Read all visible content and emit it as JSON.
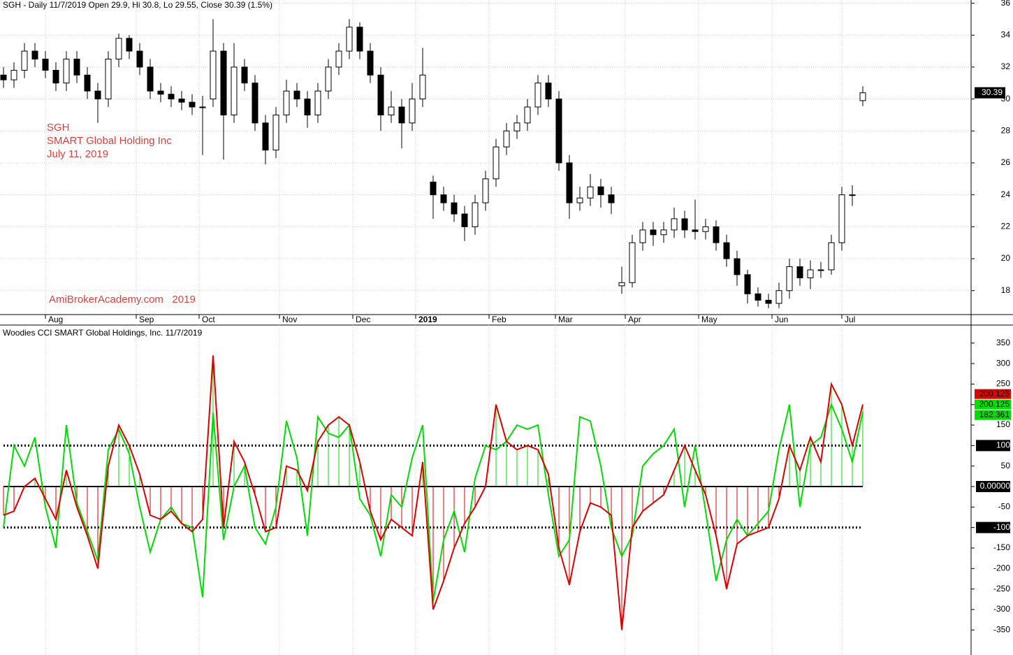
{
  "chart_data": [
    {
      "type": "candlestick",
      "title": "SGH - Daily 11/7/2019 Open 29.9, Hi 30.8, Lo 29.55, Close 30.39 (1.5%)",
      "annotations": [
        "SGH",
        "SMART Global Holding Inc",
        "July 11, 2019",
        "AmiBrokerAcademy.com   2019"
      ],
      "x": [
        0,
        3,
        6,
        9,
        12,
        15,
        18,
        21,
        24,
        27,
        30,
        33,
        36,
        39,
        42,
        45,
        48,
        51,
        54,
        57,
        60,
        63,
        66,
        69,
        72,
        75,
        78,
        81,
        84,
        87,
        90,
        93,
        96,
        99,
        102,
        105,
        108,
        111,
        114,
        117,
        120,
        123,
        126,
        129,
        132,
        135,
        138,
        141,
        144,
        147,
        150,
        153,
        156,
        159,
        162,
        165,
        168,
        171,
        174,
        177,
        180,
        183,
        186,
        189,
        192,
        195,
        198,
        201,
        204,
        207,
        210,
        213,
        216,
        219,
        222,
        225,
        228,
        231,
        234,
        237,
        240,
        243,
        246
      ],
      "open": [
        31.5,
        31.2,
        31.8,
        33.0,
        32.5,
        31.8,
        31.0,
        32.5,
        31.5,
        30.5,
        30.0,
        32.5,
        33.8,
        33.0,
        32.0,
        30.5,
        30.3,
        30.0,
        29.8,
        29.5,
        30.0,
        33.0,
        29.0,
        32.0,
        31.0,
        28.5,
        26.8,
        29.0,
        30.5,
        30.0,
        29.0,
        30.5,
        32.0,
        33.0,
        34.5,
        33.0,
        31.5,
        29.0,
        29.5,
        28.5,
        30.0,
        24.8,
        24.0,
        23.5,
        22.8,
        22.0,
        23.5,
        25.0,
        27.0,
        28.0,
        28.5,
        29.5,
        31.0,
        30.0,
        26.0,
        23.5,
        23.8,
        24.5,
        24.0,
        18.3,
        18.5,
        21.0,
        21.8,
        21.5,
        21.8,
        22.5,
        21.8,
        21.7,
        22.0,
        21.0,
        20.0,
        19.0,
        17.8,
        17.4,
        17.2,
        18.0,
        19.5,
        18.8,
        19.3,
        19.3,
        21.0,
        24.0,
        29.9
      ],
      "high": [
        32.0,
        32.3,
        33.5,
        33.5,
        33.0,
        32.3,
        33.0,
        33.0,
        32.0,
        31.0,
        33.0,
        34.1,
        34.0,
        33.5,
        32.5,
        31.0,
        30.8,
        30.5,
        30.3,
        30.2,
        35.0,
        33.5,
        33.5,
        32.5,
        31.5,
        29.0,
        29.5,
        31.2,
        31.0,
        30.5,
        31.0,
        32.5,
        33.5,
        35.0,
        34.8,
        33.5,
        32.0,
        30.5,
        30.0,
        31.0,
        33.2,
        25.2,
        24.5,
        24.0,
        23.3,
        24.0,
        25.5,
        27.5,
        28.5,
        29.0,
        30.0,
        31.5,
        31.5,
        30.5,
        26.5,
        24.5,
        25.3,
        25.0,
        24.5,
        19.5,
        21.5,
        22.3,
        22.3,
        22.3,
        23.2,
        23.0,
        23.7,
        22.5,
        22.4,
        21.5,
        20.5,
        19.3,
        18.2,
        17.8,
        18.5,
        20.0,
        20.0,
        19.9,
        19.8,
        21.5,
        24.5,
        24.6,
        30.8
      ],
      "low": [
        30.7,
        30.7,
        31.3,
        32.0,
        31.3,
        30.5,
        30.5,
        31.0,
        30.0,
        28.5,
        29.5,
        32.0,
        32.5,
        31.5,
        30.0,
        29.8,
        29.5,
        29.3,
        29.0,
        26.5,
        29.5,
        26.2,
        28.5,
        30.5,
        28.0,
        25.9,
        26.3,
        28.5,
        29.5,
        28.2,
        28.5,
        30.0,
        31.5,
        32.5,
        32.5,
        31.0,
        28.0,
        28.5,
        26.9,
        28.0,
        29.5,
        22.5,
        23.0,
        22.3,
        21.1,
        21.5,
        23.0,
        24.5,
        26.5,
        27.5,
        28.0,
        29.0,
        29.5,
        25.5,
        22.5,
        23.0,
        23.3,
        23.2,
        22.8,
        17.8,
        18.2,
        20.5,
        20.8,
        21.0,
        21.3,
        21.3,
        21.2,
        21.2,
        20.5,
        19.5,
        18.3,
        17.2,
        17.0,
        16.9,
        16.9,
        17.5,
        18.3,
        18.1,
        18.8,
        19.0,
        20.5,
        23.3,
        29.55
      ],
      "close": [
        31.2,
        31.8,
        33.0,
        32.5,
        31.8,
        31.0,
        32.5,
        31.5,
        30.5,
        30.0,
        32.5,
        33.8,
        33.0,
        32.0,
        30.5,
        30.3,
        30.0,
        29.8,
        29.5,
        29.5,
        33.0,
        29.0,
        32.0,
        31.0,
        28.5,
        26.8,
        29.0,
        30.5,
        30.0,
        29.0,
        30.5,
        32.0,
        33.0,
        34.5,
        33.0,
        31.5,
        29.0,
        29.5,
        28.5,
        30.0,
        31.5,
        24.0,
        23.5,
        22.8,
        22.0,
        23.5,
        25.0,
        27.0,
        28.0,
        28.5,
        29.5,
        31.0,
        30.0,
        26.0,
        23.5,
        23.8,
        24.5,
        24.0,
        23.5,
        18.5,
        21.0,
        21.8,
        21.5,
        21.8,
        22.5,
        21.8,
        21.7,
        22.0,
        21.0,
        20.0,
        19.0,
        17.8,
        17.4,
        17.2,
        18.0,
        19.5,
        18.8,
        19.3,
        19.3,
        21.0,
        24.0,
        24.0,
        30.39
      ],
      "up_color": "#ffffff",
      "down_color": "#000000",
      "xlim": [
        -1,
        277
      ],
      "xticks": [
        {
          "value": 12,
          "label": "Aug"
        },
        {
          "value": 38,
          "label": "Sep"
        },
        {
          "value": 56,
          "label": "Oct"
        },
        {
          "value": 79,
          "label": "Nov"
        },
        {
          "value": 100,
          "label": "Dec"
        },
        {
          "value": 118,
          "label": "2019"
        },
        {
          "value": 139,
          "label": "Feb"
        },
        {
          "value": 158,
          "label": "Mar"
        },
        {
          "value": 178,
          "label": "Apr"
        },
        {
          "value": 199,
          "label": "May"
        },
        {
          "value": 220,
          "label": "Jun"
        },
        {
          "value": 240,
          "label": "Jul"
        }
      ],
      "ylim": [
        16.5,
        36.2
      ],
      "yticks": [
        18,
        20,
        22,
        24,
        26,
        28,
        30,
        32,
        34,
        36
      ],
      "grid": true
    },
    {
      "type": "cci",
      "title": "Woodies CCI  SMART Global Holdings, Inc. 11/7/2019",
      "x": [
        0,
        3,
        6,
        9,
        12,
        15,
        18,
        21,
        24,
        27,
        30,
        33,
        36,
        39,
        42,
        45,
        48,
        51,
        54,
        57,
        60,
        63,
        66,
        69,
        72,
        75,
        78,
        81,
        84,
        87,
        90,
        93,
        96,
        99,
        102,
        105,
        108,
        111,
        114,
        117,
        120,
        123,
        126,
        129,
        132,
        135,
        138,
        141,
        144,
        147,
        150,
        153,
        156,
        159,
        162,
        165,
        168,
        171,
        174,
        177,
        180,
        183,
        186,
        189,
        192,
        195,
        198,
        201,
        204,
        207,
        210,
        213,
        216,
        219,
        222,
        225,
        228,
        231,
        234,
        237,
        240,
        243,
        246
      ],
      "series": [
        {
          "color": "#e00000",
          "values": [
            -70,
            -60,
            0,
            20,
            -30,
            -80,
            40,
            -50,
            -120,
            -200,
            50,
            150,
            100,
            30,
            -70,
            -80,
            -60,
            -90,
            -110,
            -80,
            320,
            -100,
            110,
            60,
            -20,
            -110,
            -100,
            50,
            40,
            -10,
            110,
            150,
            170,
            150,
            60,
            -60,
            -130,
            -80,
            -100,
            -120,
            60,
            -300,
            -230,
            -150,
            -90,
            -50,
            0,
            200,
            110,
            90,
            100,
            90,
            30,
            -150,
            -240,
            -110,
            -40,
            -50,
            -70,
            -350,
            -100,
            -60,
            -40,
            -20,
            40,
            100,
            40,
            -20,
            -120,
            -250,
            -140,
            -120,
            -110,
            -100,
            -30,
            100,
            40,
            120,
            60,
            250,
            200,
            100,
            200.125
          ]
        },
        {
          "color": "#00dd00",
          "values": [
            -100,
            100,
            50,
            120,
            -50,
            -150,
            150,
            -40,
            -110,
            -180,
            90,
            140,
            80,
            -50,
            -160,
            -80,
            -50,
            -90,
            -100,
            -270,
            180,
            -130,
            0,
            50,
            -100,
            -140,
            -50,
            160,
            70,
            -120,
            170,
            130,
            120,
            150,
            -30,
            -70,
            -170,
            -20,
            -50,
            70,
            150,
            -280,
            -130,
            -60,
            -160,
            20,
            100,
            90,
            110,
            150,
            140,
            150,
            -20,
            -170,
            -130,
            170,
            160,
            50,
            -100,
            -170,
            -120,
            50,
            80,
            100,
            140,
            -50,
            100,
            -60,
            -230,
            -130,
            -80,
            -120,
            -90,
            -60,
            90,
            200,
            -50,
            100,
            120,
            200,
            140,
            60,
            182.361
          ]
        }
      ],
      "hist_pos_color": "#00dd00",
      "hist_neg_color": "#e00000",
      "levels": [
        -100,
        0,
        100
      ],
      "ylim": [
        -411,
        394
      ],
      "yticks": [
        -350,
        -300,
        -250,
        -200,
        -150,
        -100,
        -50,
        {
          "value": 0,
          "label": "0.00000"
        },
        50,
        100,
        150,
        200,
        250,
        300,
        350
      ]
    }
  ]
}
